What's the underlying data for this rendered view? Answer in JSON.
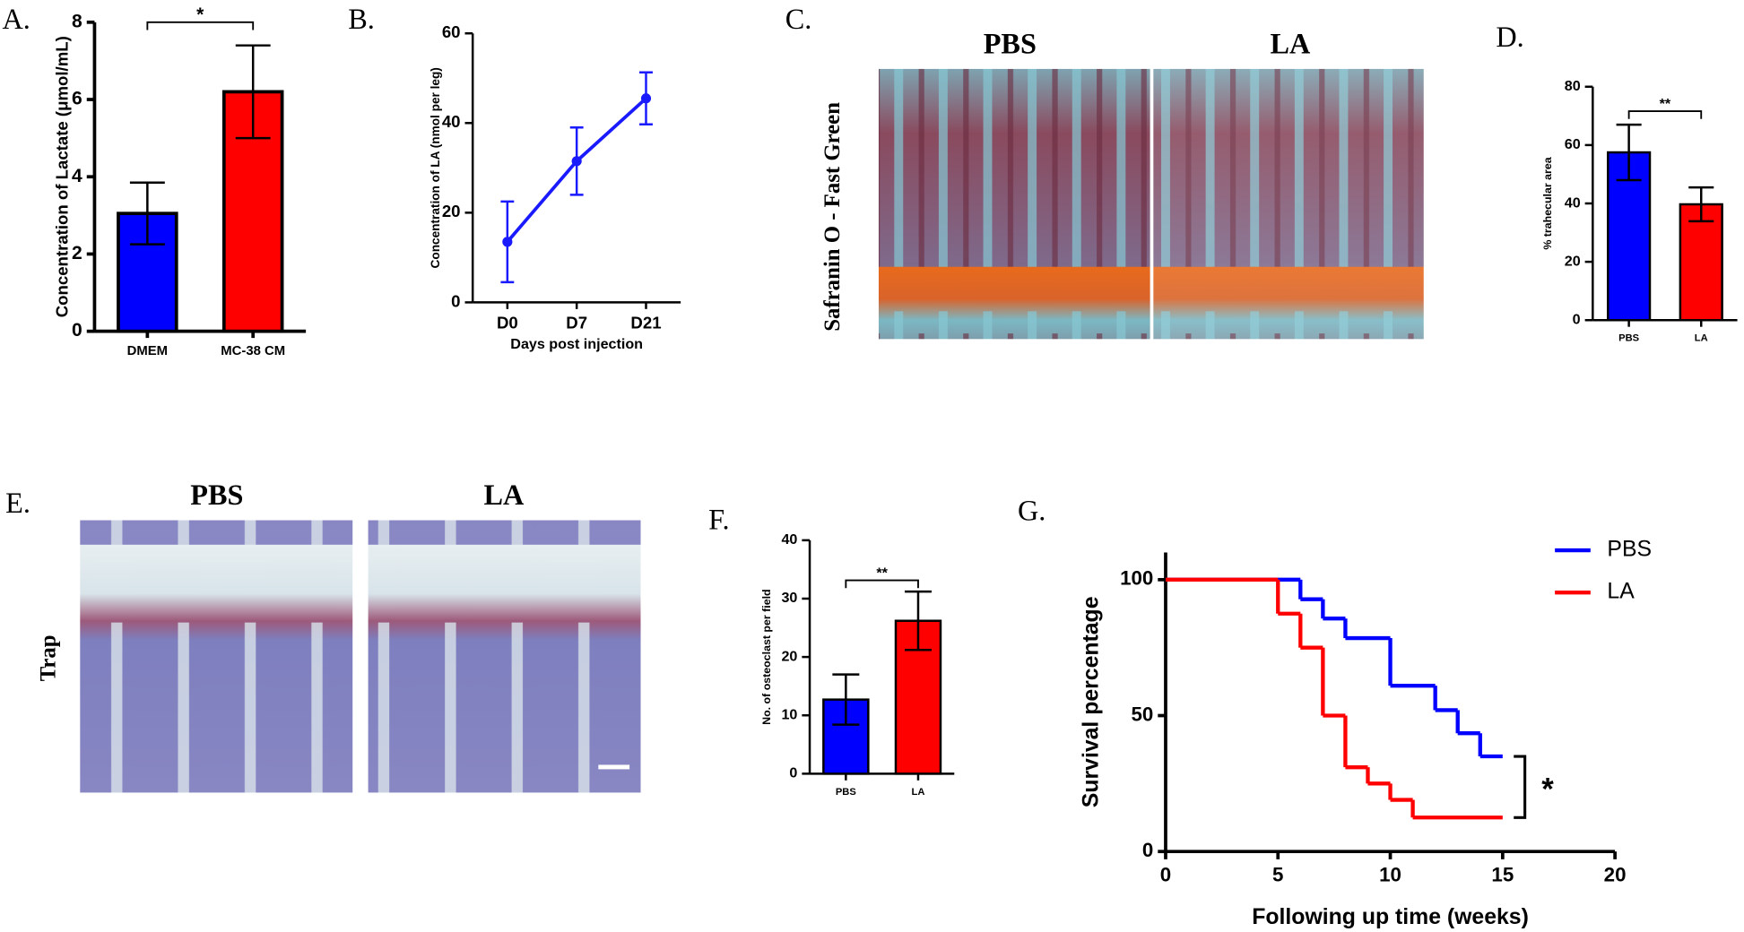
{
  "chart_data": [
    {
      "type": "bar",
      "panel_label": "A.",
      "ylabel": "Concentration of Lactate (μmol/mL)",
      "categories": [
        "DMEM",
        "MC-38 CM"
      ],
      "values": [
        3.05,
        6.2
      ],
      "errors": [
        0.8,
        1.2
      ],
      "colors": [
        "#0000ff",
        "#ff0000"
      ],
      "ylim": [
        0,
        8
      ],
      "yticks": [
        0,
        2,
        4,
        6,
        8
      ],
      "significance": "*"
    },
    {
      "type": "line",
      "panel_label": "B.",
      "ylabel": "Concentration of LA (nmol per leg)",
      "xlabel": "Days post injection",
      "categories": [
        "D0",
        "D7",
        "D21"
      ],
      "values": [
        13.5,
        31.5,
        45.5
      ],
      "errors": [
        9,
        7.5,
        5.8
      ],
      "color": "#1a1aff",
      "ylim": [
        0,
        60
      ],
      "yticks": [
        0,
        20,
        40,
        60
      ]
    },
    {
      "type": "bar",
      "panel_label": "D.",
      "ylabel": "% trahecular area",
      "categories": [
        "PBS",
        "LA"
      ],
      "values": [
        57.5,
        39.7
      ],
      "errors": [
        9.5,
        5.8
      ],
      "colors": [
        "#0000ff",
        "#ff0000"
      ],
      "ylim": [
        0,
        80
      ],
      "yticks": [
        0,
        20,
        40,
        60,
        80
      ],
      "significance": "**"
    },
    {
      "type": "bar",
      "panel_label": "F.",
      "ylabel": "No. of osteoclast per field",
      "categories": [
        "PBS",
        "LA"
      ],
      "values": [
        12.7,
        26.2
      ],
      "errors": [
        4.3,
        5
      ],
      "colors": [
        "#0000ff",
        "#ff0000"
      ],
      "ylim": [
        0,
        40
      ],
      "yticks": [
        0,
        10,
        20,
        30,
        40
      ],
      "significance": "**"
    },
    {
      "type": "step",
      "panel_label": "G.",
      "ylabel": "Survival percentage",
      "xlabel": "Following up time (weeks)",
      "xlim": [
        0,
        20
      ],
      "xticks": [
        0,
        5,
        10,
        15,
        20
      ],
      "ylim": [
        0,
        110
      ],
      "yticks": [
        0,
        50,
        100
      ],
      "legend": "upper right",
      "significance": "*",
      "series": [
        {
          "name": "PBS",
          "color": "#0000ff",
          "x": [
            0,
            6,
            7,
            8,
            10,
            12,
            13,
            14,
            15
          ],
          "values": [
            100,
            92.8,
            85.7,
            78.5,
            61,
            52,
            43.5,
            35,
            35
          ]
        },
        {
          "name": "LA",
          "color": "#ff0000",
          "x": [
            0,
            5,
            6,
            7,
            8,
            9,
            10,
            11,
            15
          ],
          "values": [
            100,
            87.5,
            75,
            50,
            31,
            25,
            19,
            12.5,
            12.5
          ]
        }
      ]
    }
  ],
  "image_panels": [
    {
      "panel_label": "C.",
      "titles": [
        "PBS",
        "LA"
      ],
      "stain": "Safranin O - Fast Green"
    },
    {
      "panel_label": "E.",
      "titles": [
        "PBS",
        "LA"
      ],
      "stain": "Trap"
    }
  ]
}
